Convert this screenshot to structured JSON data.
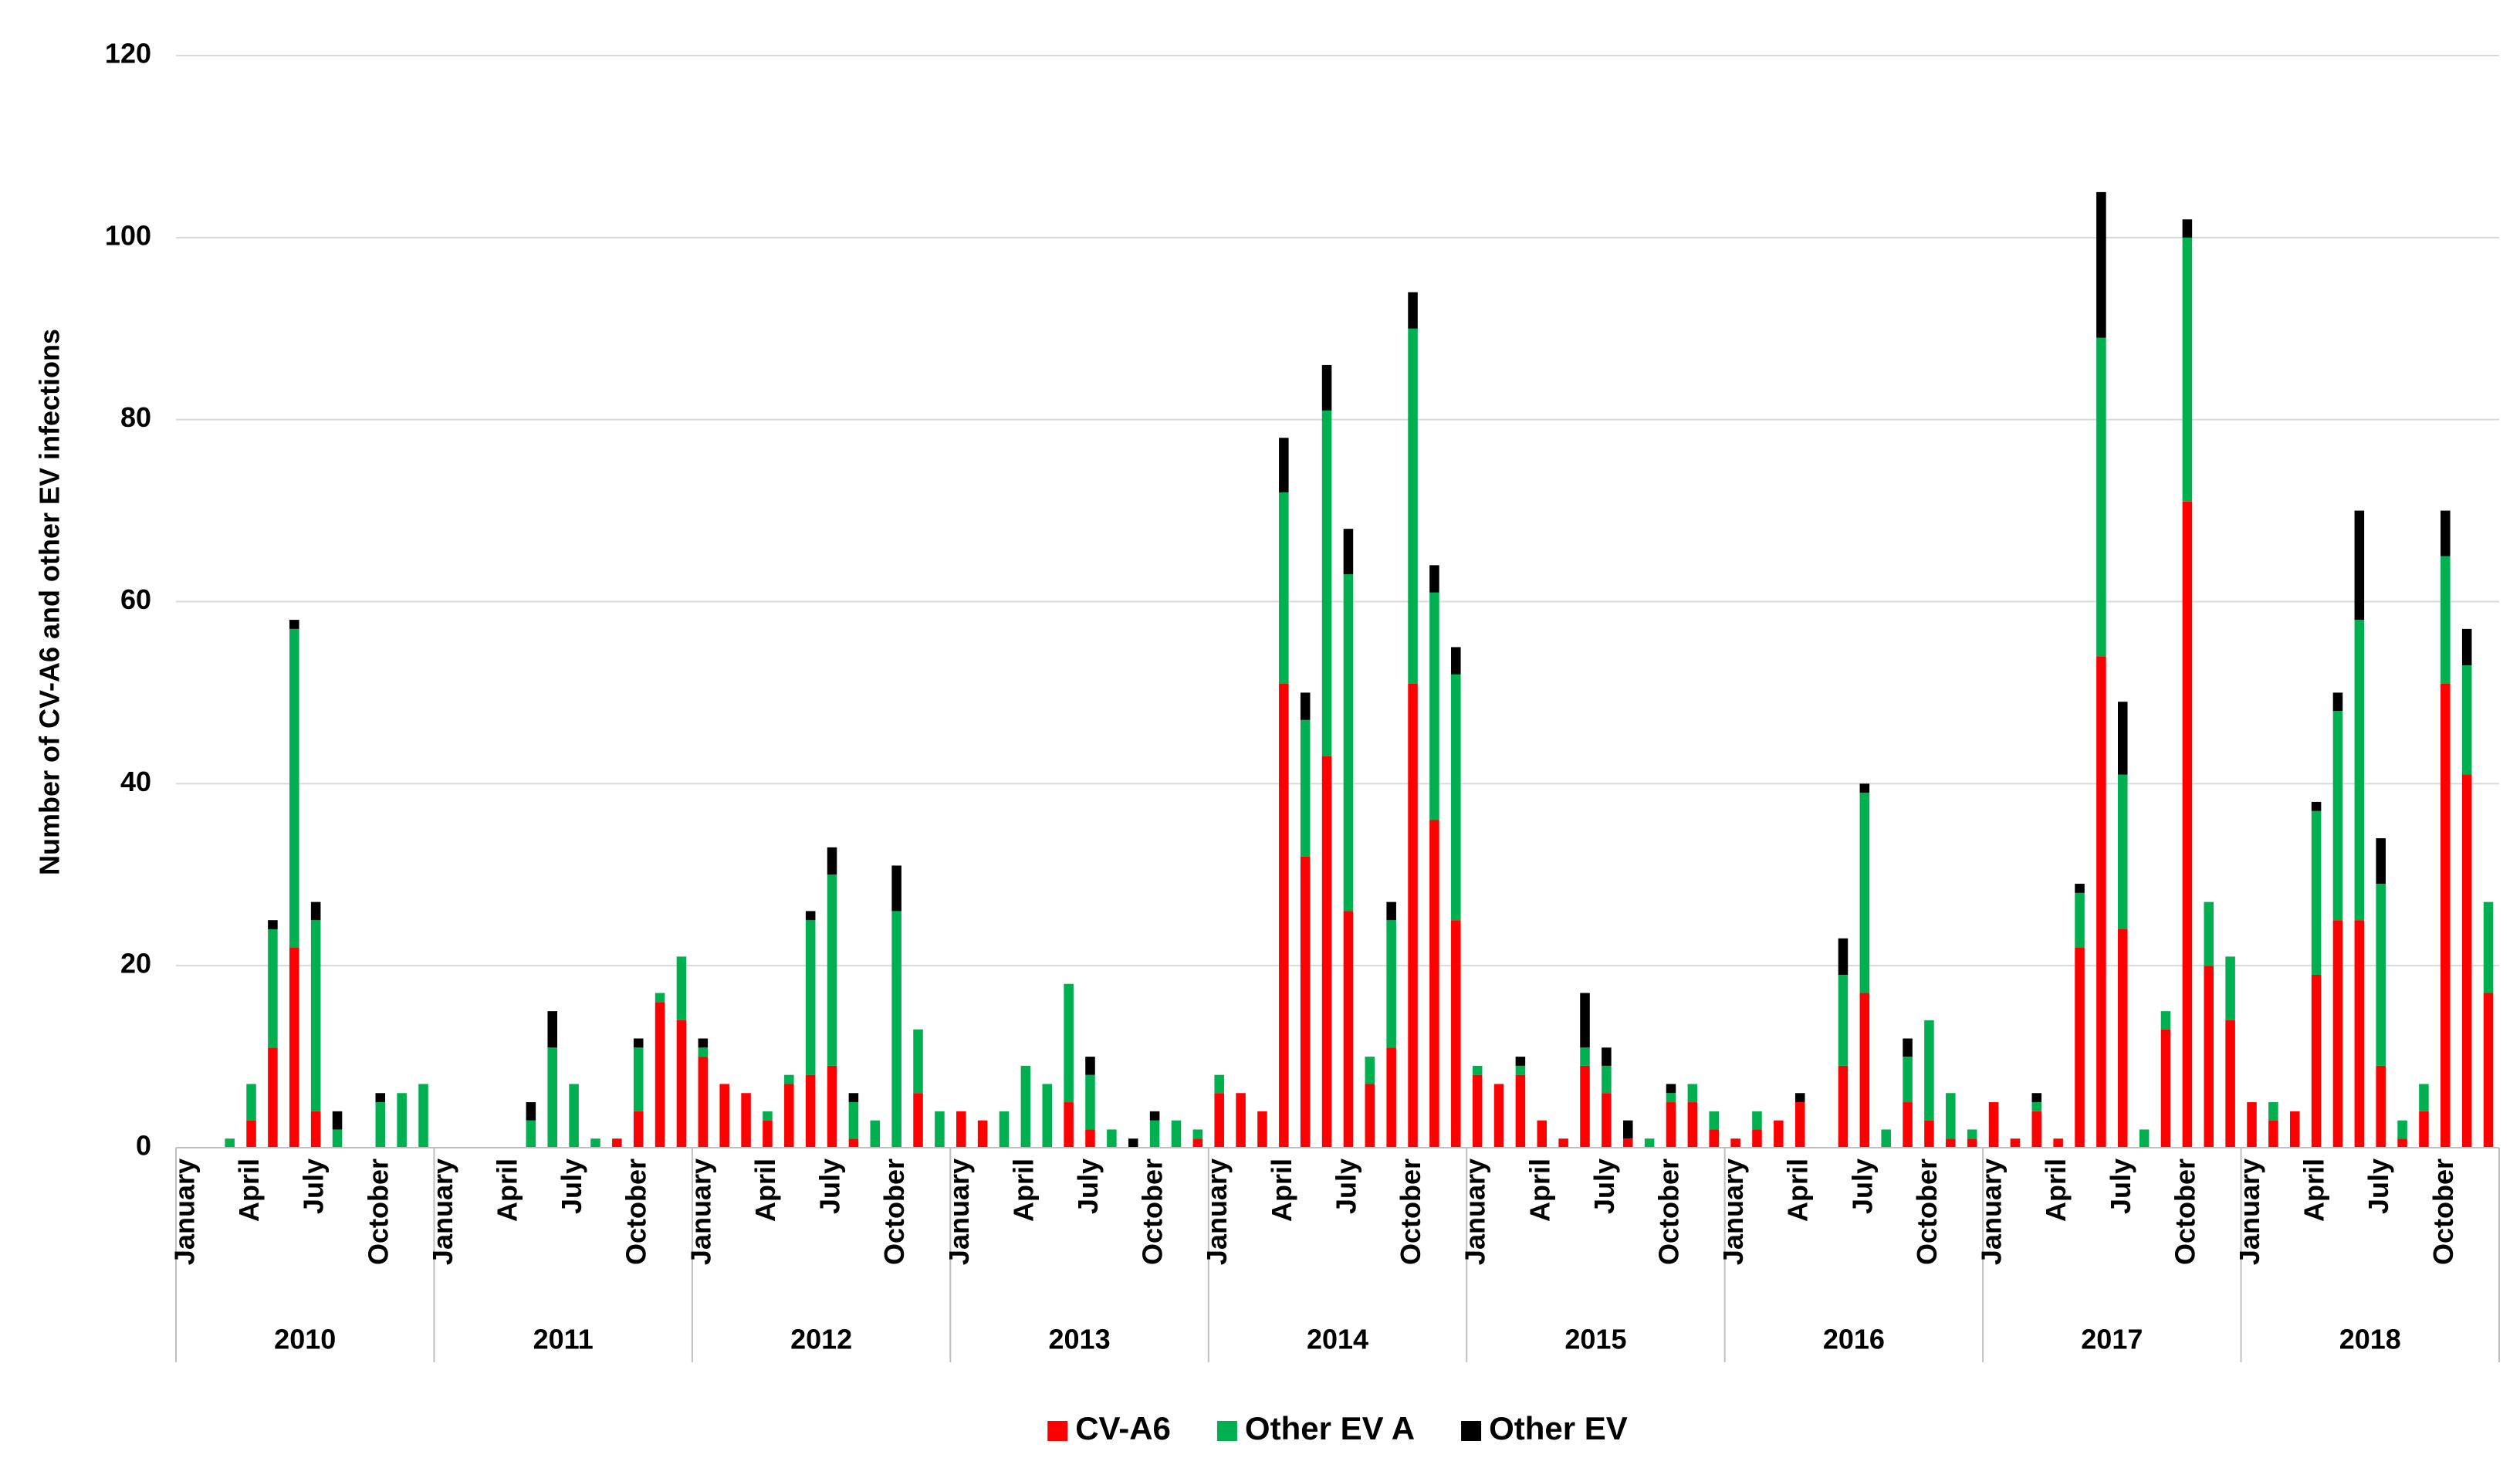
{
  "chart_data": {
    "type": "stacked_bar",
    "y_label": "Number of CV-A6 and other EV infections",
    "categories": [
      "January",
      null,
      null,
      "April",
      null,
      null,
      "July",
      null,
      null,
      "October",
      null,
      null,
      "January",
      null,
      null,
      "April",
      null,
      null,
      "July",
      null,
      null,
      "October",
      null,
      null,
      "January",
      null,
      null,
      "April",
      null,
      null,
      "July",
      null,
      null,
      "October",
      null,
      null,
      "January",
      null,
      null,
      "April",
      null,
      null,
      "July",
      null,
      null,
      "October",
      null,
      null,
      "January",
      null,
      null,
      "April",
      null,
      null,
      "July",
      null,
      null,
      "October",
      null,
      null,
      "January",
      null,
      null,
      "April",
      null,
      null,
      "July",
      null,
      null,
      "October",
      null,
      null,
      "January",
      null,
      null,
      "April",
      null,
      null,
      "July",
      null,
      null,
      "October",
      null,
      null,
      "January",
      null,
      null,
      "April",
      null,
      null,
      "July",
      null,
      null,
      "October",
      null,
      null,
      "January",
      null,
      null,
      "April",
      null,
      null,
      "July",
      null,
      null,
      "October",
      null,
      null
    ],
    "years": [
      "2010",
      "2011",
      "2012",
      "2013",
      "2014",
      "2015",
      "2016",
      "2017",
      "2018"
    ],
    "series": [
      {
        "name": "CV-A6",
        "color": "#ff0000",
        "values": [
          0,
          0,
          0,
          3,
          11,
          22,
          4,
          0,
          0,
          0,
          0,
          0,
          0,
          0,
          0,
          0,
          0,
          0,
          0,
          0,
          1,
          4,
          16,
          14,
          10,
          7,
          6,
          3,
          7,
          8,
          9,
          1,
          0,
          0,
          6,
          0,
          4,
          3,
          0,
          0,
          0,
          5,
          2,
          0,
          0,
          0,
          0,
          1,
          6,
          6,
          4,
          51,
          32,
          43,
          26,
          7,
          11,
          51,
          36,
          25,
          8,
          7,
          8,
          3,
          1,
          9,
          6,
          1,
          0,
          5,
          5,
          2,
          1,
          2,
          3,
          5,
          0,
          9,
          17,
          0,
          5,
          3,
          1,
          1,
          5,
          1,
          4,
          1,
          22,
          54,
          24,
          0,
          13,
          71,
          20,
          14,
          5,
          3,
          4,
          19,
          25,
          25,
          9,
          1,
          4,
          51,
          41,
          17
        ]
      },
      {
        "name": "Other EV A",
        "color": "#00b050",
        "values": [
          0,
          0,
          1,
          4,
          13,
          35,
          21,
          2,
          0,
          5,
          6,
          7,
          0,
          0,
          0,
          0,
          3,
          11,
          7,
          1,
          0,
          7,
          1,
          7,
          1,
          0,
          0,
          1,
          1,
          17,
          21,
          4,
          3,
          26,
          7,
          4,
          0,
          0,
          4,
          9,
          7,
          13,
          6,
          2,
          0,
          3,
          3,
          1,
          2,
          0,
          0,
          21,
          15,
          38,
          37,
          3,
          14,
          39,
          25,
          27,
          1,
          0,
          1,
          0,
          0,
          2,
          3,
          0,
          1,
          1,
          2,
          2,
          0,
          2,
          0,
          0,
          0,
          10,
          22,
          2,
          5,
          11,
          5,
          1,
          0,
          0,
          1,
          0,
          6,
          35,
          17,
          2,
          2,
          29,
          7,
          7,
          0,
          2,
          0,
          18,
          23,
          33,
          20,
          2,
          3,
          14,
          12,
          10
        ]
      },
      {
        "name": "Other EV",
        "color": "#000000",
        "values": [
          0,
          0,
          0,
          0,
          1,
          1,
          2,
          2,
          0,
          1,
          0,
          0,
          0,
          0,
          0,
          0,
          2,
          4,
          0,
          0,
          0,
          1,
          0,
          0,
          1,
          0,
          0,
          0,
          0,
          1,
          3,
          1,
          0,
          5,
          0,
          0,
          0,
          0,
          0,
          0,
          0,
          0,
          2,
          0,
          1,
          1,
          0,
          0,
          0,
          0,
          0,
          6,
          3,
          5,
          5,
          0,
          2,
          4,
          3,
          3,
          0,
          0,
          1,
          0,
          0,
          6,
          2,
          2,
          0,
          1,
          0,
          0,
          0,
          0,
          0,
          1,
          0,
          4,
          1,
          0,
          2,
          0,
          0,
          0,
          0,
          0,
          1,
          0,
          1,
          16,
          8,
          0,
          0,
          2,
          0,
          0,
          0,
          0,
          0,
          1,
          2,
          12,
          5,
          0,
          0,
          5,
          4,
          0
        ]
      }
    ],
    "ylim": [
      0,
      120
    ],
    "yticks": [
      0,
      20,
      40,
      60,
      80,
      100,
      120
    ],
    "grid": true,
    "legend": "bottom"
  }
}
